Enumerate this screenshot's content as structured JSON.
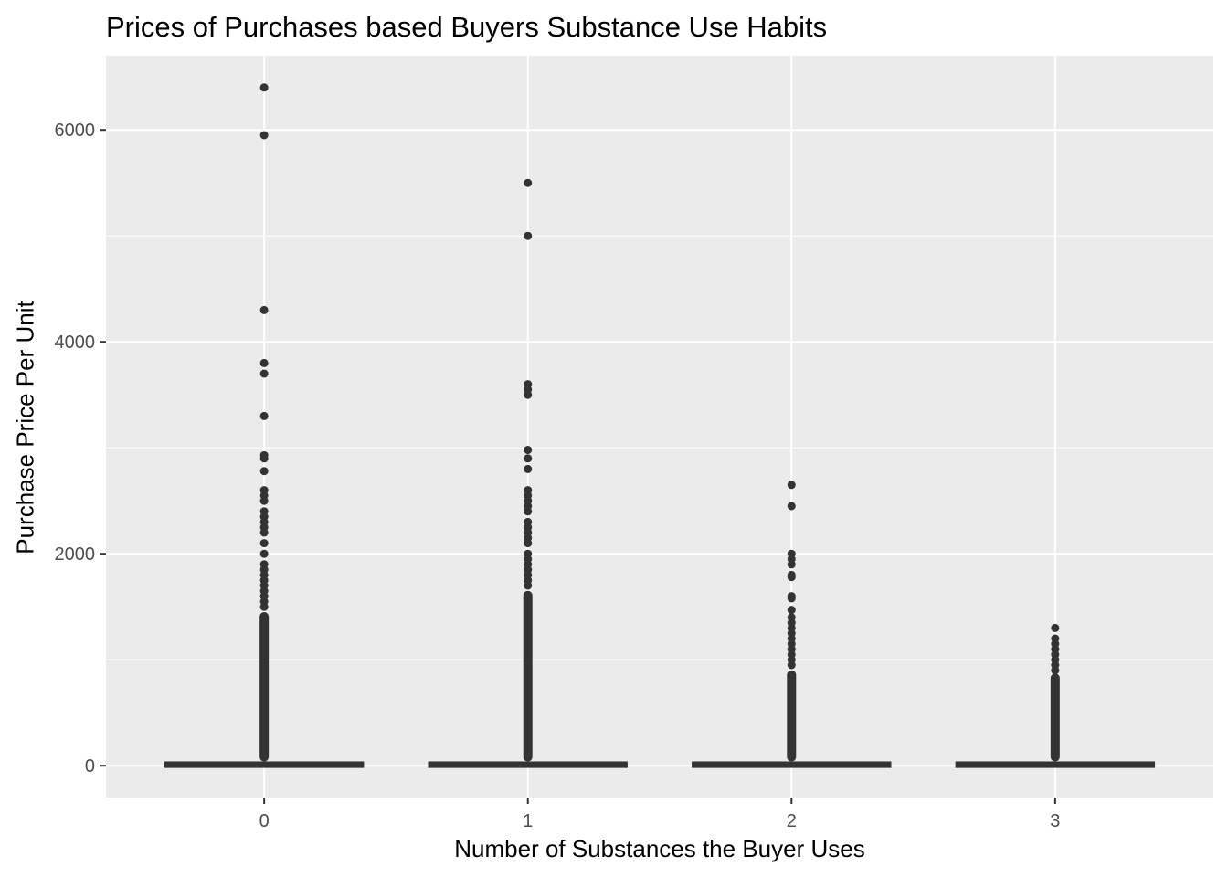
{
  "chart_data": {
    "type": "box",
    "title": "Prices of Purchases based Buyers Substance Use Habits",
    "xlabel": "Number of Substances the Buyer Uses",
    "ylabel": "Purchase Price Per Unit",
    "categories": [
      "0",
      "1",
      "2",
      "3"
    ],
    "y_ticks": [
      0,
      2000,
      4000,
      6000
    ],
    "ylim": [
      -300,
      6700
    ],
    "grid": true,
    "background": "#EBEBEB",
    "grid_color": "#FFFFFF",
    "mark_color": "#333333",
    "boxes": [
      {
        "category": "0",
        "min": 0,
        "q1": 5,
        "median": 10,
        "q3": 15,
        "max": 30,
        "outliers": [
          6400,
          5950,
          4300,
          3800,
          3700,
          3300,
          2930,
          2900,
          2780,
          2600,
          2550,
          2500,
          2400,
          2350,
          2300,
          2250,
          2200,
          2100,
          2000,
          1900,
          1850,
          1800,
          1750,
          1700,
          1650,
          1600,
          1550,
          1500
        ],
        "dense_outlier_band": [
          40,
          1450
        ]
      },
      {
        "category": "1",
        "min": 0,
        "q1": 5,
        "median": 10,
        "q3": 15,
        "max": 30,
        "outliers": [
          5500,
          5000,
          3600,
          3550,
          3500,
          2980,
          2900,
          2800,
          2600,
          2550,
          2500,
          2450,
          2400,
          2300,
          2250,
          2200,
          2150,
          2100,
          2000,
          1950,
          1900,
          1850,
          1800,
          1750,
          1700
        ],
        "dense_outlier_band": [
          40,
          1650
        ]
      },
      {
        "category": "2",
        "min": 0,
        "q1": 5,
        "median": 10,
        "q3": 15,
        "max": 30,
        "outliers": [
          2650,
          2450,
          2000,
          1950,
          1900,
          1800,
          1780,
          1600,
          1580,
          1470,
          1400,
          1350,
          1300,
          1250,
          1200,
          1150,
          1100,
          1050,
          1000,
          950
        ],
        "dense_outlier_band": [
          40,
          900
        ]
      },
      {
        "category": "3",
        "min": 0,
        "q1": 5,
        "median": 10,
        "q3": 15,
        "max": 30,
        "outliers": [
          1300,
          1200,
          1150,
          1100,
          1050,
          1000,
          950,
          900
        ],
        "dense_outlier_band": [
          40,
          870
        ]
      }
    ]
  }
}
